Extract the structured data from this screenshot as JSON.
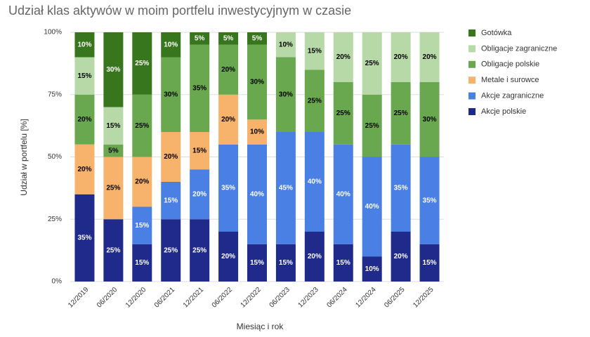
{
  "chart_data": {
    "type": "stacked_bar",
    "title": "Udział klas aktywów w moim portfelu inwestycyjnym w czasie",
    "x_label": "Miesiąc i rok",
    "y_label": "Udział w portfelu [%]",
    "categories": [
      "12/2019",
      "06/2020",
      "12/2020",
      "06/2021",
      "12/2021",
      "06/2022",
      "12/2022",
      "06/2023",
      "12/2023",
      "06/2024",
      "12/2024",
      "06/2025",
      "12/2025"
    ],
    "series": [
      {
        "name": "Akcje polskie",
        "color": "#1f2a8a",
        "label_color": "#ffffff",
        "values": [
          35,
          25,
          15,
          25,
          25,
          20,
          15,
          15,
          20,
          15,
          10,
          20,
          15
        ],
        "value_labels": [
          "35%",
          "25%",
          "15%",
          "25%",
          "25%",
          "20%",
          "15%",
          "15%",
          "20%",
          "15%",
          "10%",
          "20%",
          "15%"
        ]
      },
      {
        "name": "Akcje zagraniczne",
        "color": "#4a80e3",
        "label_color": "#ffffff",
        "values": [
          0,
          0,
          15,
          15,
          20,
          35,
          40,
          45,
          40,
          40,
          40,
          35,
          35
        ],
        "value_labels": [
          null,
          null,
          "15%",
          "15%",
          "20%",
          "35%",
          "40%",
          "45%",
          "40%",
          "40%",
          "40%",
          "35%",
          "35%"
        ]
      },
      {
        "name": "Metale i surowce",
        "color": "#f7b26b",
        "label_color": "#000000",
        "values": [
          20,
          25,
          20,
          20,
          15,
          20,
          10,
          0,
          0,
          0,
          0,
          0,
          0
        ],
        "value_labels": [
          "20%",
          "25%",
          "20%",
          "20%",
          "15%",
          "20%",
          "10%",
          null,
          null,
          null,
          null,
          null,
          null
        ]
      },
      {
        "name": "Obligacje polskie",
        "color": "#6aa84f",
        "label_color": "#000000",
        "values": [
          20,
          5,
          25,
          30,
          35,
          20,
          30,
          30,
          25,
          25,
          25,
          25,
          30
        ],
        "value_labels": [
          "20%",
          "5%",
          "25%",
          "30%",
          "35%",
          "20%",
          "30%",
          "30%",
          "25%",
          "25%",
          "25%",
          "25%",
          "30%"
        ]
      },
      {
        "name": "Obligacje zagraniczne",
        "color": "#b7d9a8",
        "label_color": "#000000",
        "values": [
          15,
          15,
          0,
          0,
          0,
          0,
          0,
          10,
          15,
          20,
          25,
          20,
          20
        ],
        "value_labels": [
          "15%",
          "15%",
          null,
          null,
          null,
          null,
          null,
          "10%",
          "15%",
          "20%",
          "25%",
          "20%",
          "20%"
        ]
      },
      {
        "name": "Gotówka",
        "color": "#38761d",
        "label_color": "#ffffff",
        "values": [
          10,
          30,
          25,
          10,
          5,
          5,
          5,
          0,
          0,
          0,
          0,
          0,
          0
        ],
        "value_labels": [
          "10%",
          "30%",
          "25%",
          "10%",
          "5%",
          "5%",
          "5%",
          null,
          null,
          null,
          null,
          null,
          null
        ]
      }
    ],
    "ylim": [
      0,
      100
    ],
    "yticks": [
      {
        "value": 0,
        "label": "0%"
      },
      {
        "value": 25,
        "label": "25%"
      },
      {
        "value": 50,
        "label": "50%"
      },
      {
        "value": 75,
        "label": "75%"
      },
      {
        "value": 100,
        "label": "100%"
      }
    ],
    "grid": true,
    "legend": "right"
  }
}
